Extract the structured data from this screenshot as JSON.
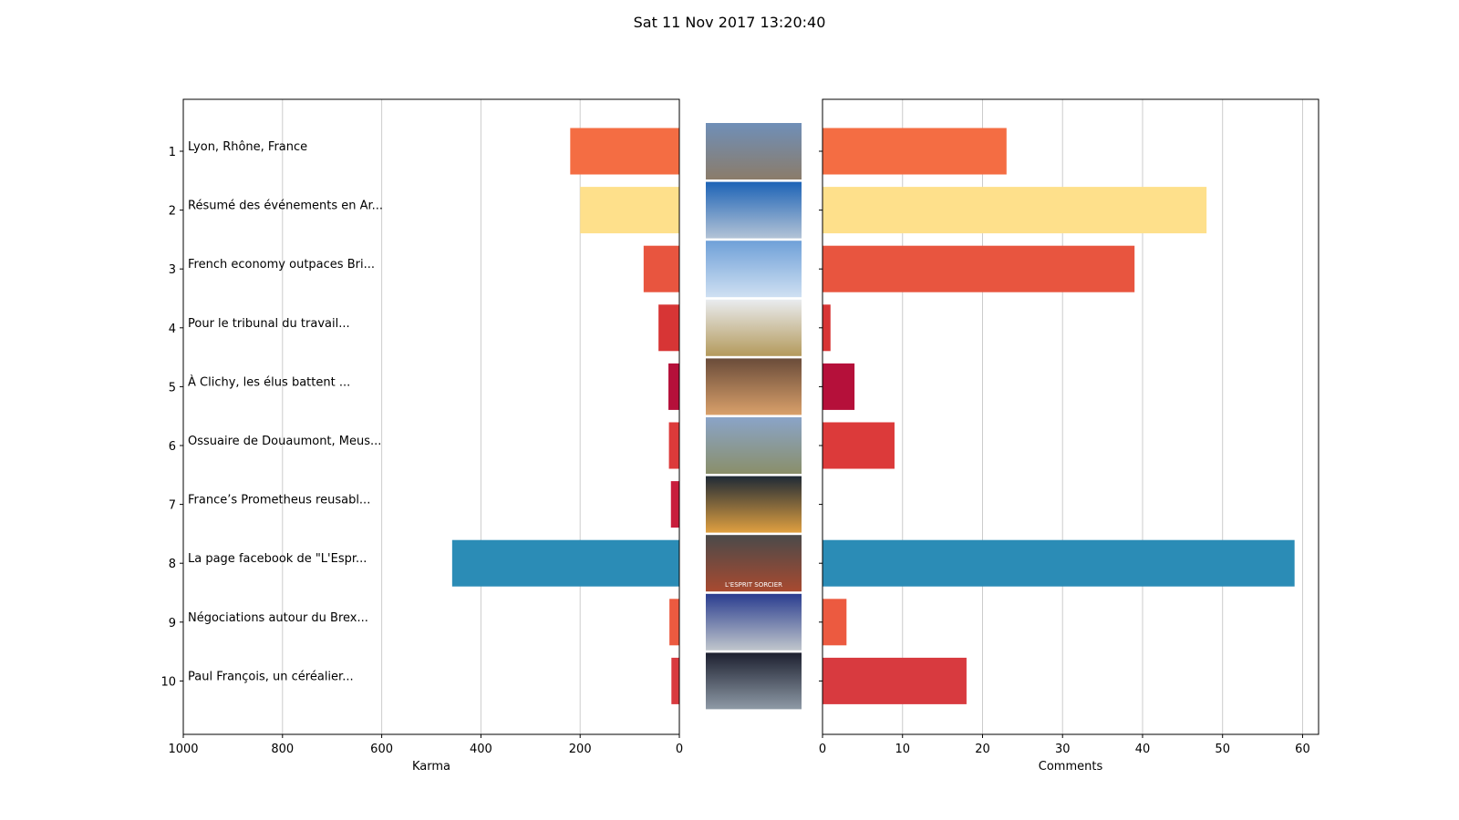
{
  "chart_data": {
    "type": "bar",
    "title": "Sat 11 Nov 2017 13:20:40",
    "ranks": [
      "1",
      "2",
      "3",
      "4",
      "5",
      "6",
      "7",
      "8",
      "9",
      "10"
    ],
    "categories": [
      "Lyon, Rhône, France",
      "Résumé des événements en Ar...",
      "French economy outpaces Bri...",
      "Pour le tribunal du travail...",
      "À Clichy, les élus battent ...",
      "Ossuaire de Douaumont, Meus...",
      "France’s Prometheus reusabl...",
      "La page facebook de \"L'Espr...",
      "Négociations autour du Brex...",
      "Paul François, un céréalier..."
    ],
    "colors": [
      "#f46d43",
      "#fee08b",
      "#e8553f",
      "#d73535",
      "#b5103a",
      "#dc3a3a",
      "#c81e3c",
      "#2b8cb6",
      "#ec5a40",
      "#d83a3f"
    ],
    "series": [
      {
        "name": "Karma",
        "values": [
          220,
          200,
          72,
          42,
          22,
          21,
          17,
          458,
          20,
          16
        ],
        "xlabel": "Karma",
        "xlim": [
          1000,
          0
        ],
        "ticks": [
          "1000",
          "800",
          "600",
          "400",
          "200",
          "0"
        ]
      },
      {
        "name": "Comments",
        "values": [
          23,
          48,
          39,
          1,
          4,
          9,
          0,
          59,
          3,
          18
        ],
        "xlabel": "Comments",
        "xlim": [
          0,
          62
        ],
        "ticks": [
          "0",
          "10",
          "20",
          "30",
          "40",
          "50",
          "60"
        ]
      }
    ],
    "grid": true,
    "thumbnails": [
      {
        "icon": "city-panorama-photo",
        "colors": [
          "#6f8fb8",
          "#8b7c6a"
        ]
      },
      {
        "icon": "solar-plant-photo",
        "colors": [
          "#1d63b6",
          "#b3c3d6"
        ]
      },
      {
        "icon": "jet-formation-photo",
        "colors": [
          "#6fa0d8",
          "#cfe0f2"
        ]
      },
      {
        "icon": "big-ben-phone-photo",
        "colors": [
          "#e9ecef",
          "#b49a5c"
        ]
      },
      {
        "icon": "protest-crowd-photo",
        "colors": [
          "#6a4c3a",
          "#d9a06a"
        ]
      },
      {
        "icon": "ossuary-monument-photo",
        "colors": [
          "#8aa4c8",
          "#8a8f6a"
        ]
      },
      {
        "icon": "rocket-engine-photo",
        "colors": [
          "#1f2a36",
          "#e0a040"
        ]
      },
      {
        "icon": "game-poster-photo",
        "colors": [
          "#4a4a4a",
          "#a84a30"
        ],
        "caption": "L'ESPRIT SORCIER"
      },
      {
        "icon": "eu-uk-flags-photo",
        "colors": [
          "#2a3d8f",
          "#c0c6cc"
        ]
      },
      {
        "icon": "farmer-portrait-photo",
        "colors": [
          "#1d2030",
          "#8e9aa6"
        ]
      }
    ]
  }
}
